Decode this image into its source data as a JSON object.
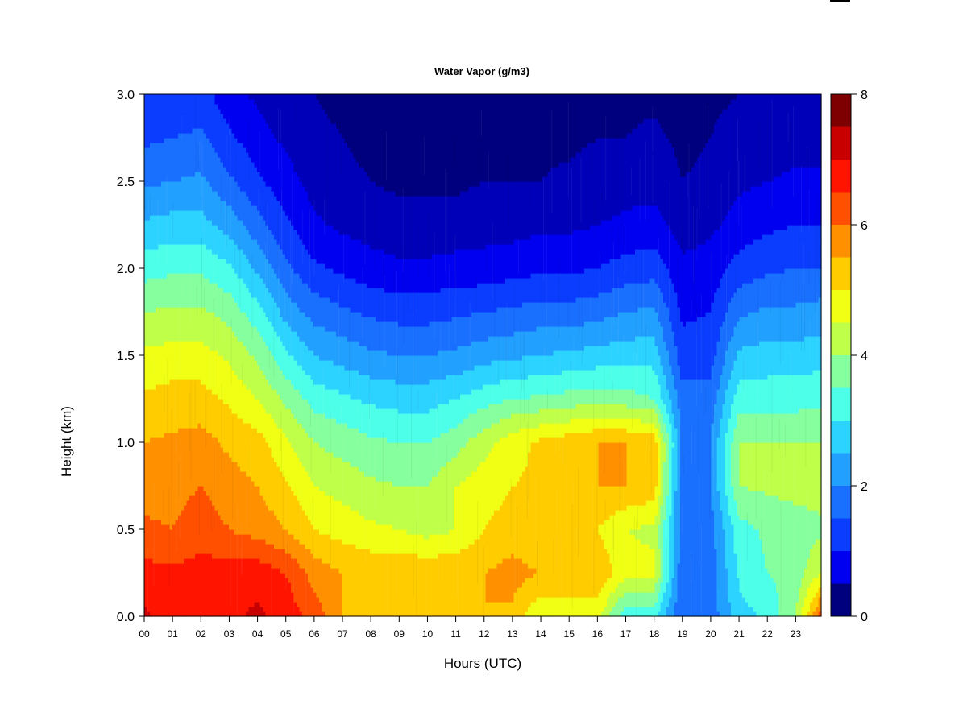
{
  "chart_data": {
    "type": "heatmap",
    "title": "Water Vapor (g/m3)",
    "xlabel": "Hours (UTC)",
    "ylabel": "Height (km)",
    "x_ticks": [
      "00",
      "01",
      "02",
      "03",
      "04",
      "05",
      "06",
      "07",
      "08",
      "09",
      "10",
      "11",
      "12",
      "13",
      "14",
      "15",
      "16",
      "17",
      "18",
      "19",
      "20",
      "21",
      "22",
      "23"
    ],
    "xlim": [
      0,
      23.9
    ],
    "y_ticks": [
      "0.0",
      "0.5",
      "1.0",
      "1.5",
      "2.0",
      "2.5",
      "3.0"
    ],
    "ylim": [
      0,
      3.0
    ],
    "colorbar": {
      "ticks": [
        "0",
        "2",
        "4",
        "6",
        "8"
      ],
      "range": [
        0,
        8
      ],
      "levels": 16,
      "colors": [
        "#00007f",
        "#0000b8",
        "#0000f0",
        "#0a3dff",
        "#1970ff",
        "#22a0ff",
        "#2cd3ff",
        "#4dffe8",
        "#86ff9e",
        "#bfff4a",
        "#f0ff14",
        "#ffcc00",
        "#ff9000",
        "#ff5000",
        "#ff1400",
        "#c80000",
        "#7f0000"
      ]
    },
    "hours": [
      0,
      1,
      2,
      3,
      4,
      5,
      6,
      7,
      8,
      9,
      10,
      11,
      12,
      13,
      14,
      15,
      16,
      17,
      18,
      19,
      20,
      21,
      22,
      23,
      23.9
    ],
    "heights_km": [
      0.0,
      0.25,
      0.5,
      0.75,
      1.0,
      1.25,
      1.5,
      1.75,
      2.0,
      2.25,
      2.5,
      2.75,
      3.0
    ],
    "water_vapor_g_m3": [
      [
        7.6,
        7.2,
        6.6,
        6.3,
        6.0,
        5.6,
        5.1,
        4.5,
        3.8,
        3.1,
        2.4,
        1.9,
        1.5
      ],
      [
        7.2,
        7.1,
        6.5,
        6.3,
        6.1,
        5.7,
        5.2,
        4.6,
        3.9,
        3.2,
        2.5,
        2.0,
        1.6
      ],
      [
        7.2,
        7.2,
        6.8,
        6.5,
        6.2,
        5.7,
        5.2,
        4.6,
        3.9,
        3.2,
        2.6,
        2.1,
        1.7
      ],
      [
        7.4,
        7.2,
        6.5,
        6.2,
        5.9,
        5.4,
        4.9,
        4.3,
        3.6,
        2.8,
        2.1,
        1.6,
        1.2
      ],
      [
        7.6,
        7.3,
        6.3,
        6.0,
        5.7,
        5.0,
        4.4,
        3.7,
        2.9,
        2.2,
        1.6,
        1.2,
        0.9
      ],
      [
        7.3,
        7.0,
        6.0,
        5.6,
        5.1,
        4.4,
        3.6,
        2.8,
        2.1,
        1.6,
        1.2,
        0.9,
        0.7
      ],
      [
        6.8,
        6.3,
        5.5,
        5.0,
        4.5,
        3.8,
        3.0,
        2.3,
        1.6,
        1.1,
        0.8,
        0.6,
        0.5
      ],
      [
        6.0,
        6.0,
        5.3,
        4.8,
        4.3,
        3.6,
        2.8,
        2.1,
        1.4,
        0.9,
        0.6,
        0.5,
        0.4
      ],
      [
        6.0,
        5.9,
        5.1,
        4.6,
        4.1,
        3.4,
        2.6,
        1.9,
        1.2,
        0.8,
        0.5,
        0.4,
        0.3
      ],
      [
        6.0,
        5.9,
        5.0,
        4.5,
        4.0,
        3.3,
        2.5,
        1.8,
        1.1,
        0.7,
        0.4,
        0.3,
        0.3
      ],
      [
        6.0,
        5.9,
        4.8,
        4.5,
        4.0,
        3.3,
        2.5,
        1.8,
        1.1,
        0.7,
        0.4,
        0.3,
        0.3
      ],
      [
        6.0,
        5.9,
        5.0,
        5.0,
        4.3,
        3.5,
        2.6,
        1.9,
        1.2,
        0.7,
        0.4,
        0.3,
        0.3
      ],
      [
        6.0,
        6.0,
        5.5,
        5.3,
        4.8,
        3.8,
        2.8,
        2.0,
        1.2,
        0.8,
        0.5,
        0.3,
        0.3
      ],
      [
        5.9,
        6.2,
        5.7,
        5.5,
        5.3,
        4.0,
        2.9,
        2.1,
        1.3,
        0.8,
        0.5,
        0.3,
        0.3
      ],
      [
        5.0,
        6.0,
        5.5,
        5.6,
        5.6,
        4.1,
        3.0,
        2.2,
        1.4,
        0.9,
        0.5,
        0.4,
        0.3
      ],
      [
        5.1,
        6.0,
        5.5,
        6.0,
        5.8,
        4.2,
        3.1,
        2.2,
        1.4,
        0.9,
        0.6,
        0.4,
        0.3
      ],
      [
        5.2,
        5.9,
        5.5,
        6.0,
        6.0,
        4.3,
        3.2,
        2.3,
        1.5,
        1.0,
        0.7,
        0.5,
        0.4
      ],
      [
        3.6,
        5.2,
        5.0,
        6.0,
        6.0,
        4.2,
        3.3,
        2.5,
        1.7,
        1.1,
        0.8,
        0.5,
        0.4
      ],
      [
        3.6,
        5.1,
        4.9,
        5.8,
        5.8,
        4.0,
        3.3,
        2.6,
        1.8,
        1.2,
        0.8,
        0.6,
        0.4
      ],
      [
        2.0,
        2.1,
        2.2,
        2.2,
        2.4,
        2.2,
        1.7,
        1.4,
        1.1,
        0.8,
        0.5,
        0.4,
        0.3
      ],
      [
        2.2,
        2.2,
        2.3,
        2.5,
        2.5,
        2.2,
        1.8,
        1.5,
        1.2,
        0.9,
        0.6,
        0.5,
        0.4
      ],
      [
        3.3,
        3.6,
        3.8,
        4.5,
        4.5,
        3.8,
        3.1,
        2.4,
        1.7,
        1.2,
        0.9,
        0.7,
        0.5
      ],
      [
        3.6,
        4.0,
        4.1,
        4.6,
        4.5,
        3.8,
        3.2,
        2.6,
        1.9,
        1.4,
        1.0,
        0.7,
        0.5
      ],
      [
        4.5,
        4.2,
        4.2,
        4.7,
        4.5,
        3.8,
        3.2,
        2.6,
        2.0,
        1.5,
        1.1,
        0.8,
        0.5
      ],
      [
        6.8,
        5.0,
        4.4,
        4.7,
        4.5,
        3.9,
        3.3,
        2.7,
        2.0,
        1.5,
        1.1,
        0.8,
        0.6
      ]
    ]
  }
}
